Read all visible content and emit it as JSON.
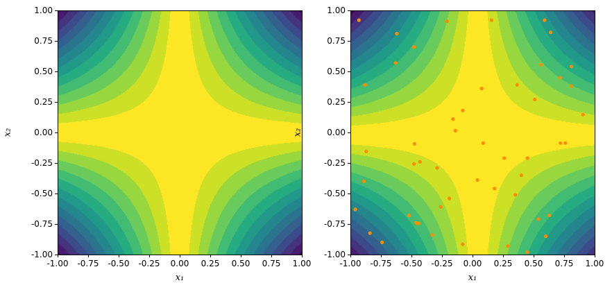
{
  "chart_data": [
    {
      "type": "contour",
      "xlabel": "x₁",
      "ylabel": "x₂",
      "xlim": [
        -1,
        1
      ],
      "ylim": [
        -1,
        1
      ],
      "xticks": [
        "-1.00",
        "-0.75",
        "-0.50",
        "-0.25",
        "0.00",
        "0.25",
        "0.50",
        "0.75",
        "1.00"
      ],
      "yticks": [
        "-1.00",
        "-0.75",
        "-0.50",
        "-0.25",
        "0.00",
        "0.25",
        "0.50",
        "0.75",
        "1.00"
      ],
      "colormap": "viridis"
    },
    {
      "type": "contour",
      "xlabel": "x₁",
      "ylabel": "x₂",
      "xlim": [
        -1,
        1
      ],
      "ylim": [
        -1,
        1
      ],
      "xticks": [
        "-1.00",
        "-0.75",
        "-0.50",
        "-0.25",
        "0.00",
        "0.25",
        "0.50",
        "0.75",
        "1.00"
      ],
      "yticks": [
        "-1.00",
        "-0.75",
        "-0.50",
        "-0.25",
        "0.00",
        "0.25",
        "0.50",
        "0.75",
        "1.00"
      ],
      "colormap": "viridis",
      "scatter_color": "#ff8c00",
      "scatter_points": [
        [
          -0.93,
          0.92
        ],
        [
          -0.62,
          0.81
        ],
        [
          -0.48,
          0.7
        ],
        [
          -0.63,
          0.57
        ],
        [
          -0.88,
          0.39
        ],
        [
          -0.21,
          0.91
        ],
        [
          -0.08,
          0.18
        ],
        [
          -0.16,
          0.11
        ],
        [
          -0.14,
          0.015
        ],
        [
          0.155,
          0.92
        ],
        [
          0.59,
          0.92
        ],
        [
          0.64,
          0.82
        ],
        [
          0.56,
          0.555
        ],
        [
          0.81,
          0.54
        ],
        [
          0.72,
          0.45
        ],
        [
          0.81,
          0.38
        ],
        [
          0.075,
          0.36
        ],
        [
          0.365,
          0.39
        ],
        [
          0.51,
          0.27
        ],
        [
          0.905,
          0.146
        ],
        [
          -0.475,
          -0.093
        ],
        [
          -0.87,
          -0.155
        ],
        [
          -0.48,
          -0.257
        ],
        [
          -0.43,
          -0.24
        ],
        [
          -0.29,
          -0.29
        ],
        [
          -0.89,
          -0.4
        ],
        [
          -0.19,
          -0.54
        ],
        [
          -0.26,
          -0.61
        ],
        [
          -0.96,
          -0.63
        ],
        [
          -0.52,
          -0.68
        ],
        [
          -0.46,
          -0.74
        ],
        [
          -0.44,
          -0.745
        ],
        [
          -0.33,
          -0.84
        ],
        [
          -0.84,
          -0.825
        ],
        [
          -0.74,
          -0.9
        ],
        [
          -0.08,
          -0.915
        ],
        [
          0.087,
          -0.087
        ],
        [
          0.72,
          -0.087
        ],
        [
          0.76,
          -0.087
        ],
        [
          0.26,
          -0.21
        ],
        [
          0.45,
          -0.21
        ],
        [
          0.4,
          -0.35
        ],
        [
          0.04,
          -0.39
        ],
        [
          0.18,
          -0.46
        ],
        [
          0.35,
          -0.51
        ],
        [
          0.63,
          -0.68
        ],
        [
          0.54,
          -0.71
        ],
        [
          0.6,
          -0.85
        ],
        [
          0.29,
          -0.93
        ],
        [
          0.45,
          -0.98
        ]
      ]
    }
  ]
}
